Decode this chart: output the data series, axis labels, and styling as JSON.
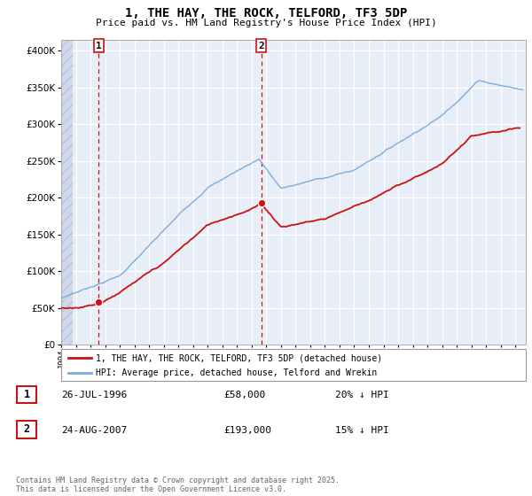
{
  "title": "1, THE HAY, THE ROCK, TELFORD, TF3 5DP",
  "subtitle": "Price paid vs. HM Land Registry's House Price Index (HPI)",
  "ytick_vals": [
    0,
    50000,
    100000,
    150000,
    200000,
    250000,
    300000,
    350000,
    400000
  ],
  "ytick_labels": [
    "£0",
    "£50K",
    "£100K",
    "£150K",
    "£200K",
    "£250K",
    "£300K",
    "£350K",
    "£400K"
  ],
  "ylim": [
    0,
    415000
  ],
  "xlim_start": 1994.0,
  "xlim_end": 2025.7,
  "hpi_color": "#7aadde",
  "price_color": "#cc1111",
  "marker1_year": 1996.57,
  "marker1_price": 58000,
  "marker2_year": 2007.65,
  "marker2_price": 193000,
  "annotation1_label": "1",
  "annotation2_label": "2",
  "legend_line1": "1, THE HAY, THE ROCK, TELFORD, TF3 5DP (detached house)",
  "legend_line2": "HPI: Average price, detached house, Telford and Wrekin",
  "note1_label": "1",
  "note1_date": "26-JUL-1996",
  "note1_price": "£58,000",
  "note1_hpi": "20% ↓ HPI",
  "note2_label": "2",
  "note2_date": "24-AUG-2007",
  "note2_price": "£193,000",
  "note2_hpi": "15% ↓ HPI",
  "footnote": "Contains HM Land Registry data © Crown copyright and database right 2025.\nThis data is licensed under the Open Government Licence v3.0.",
  "background_color": "#e8eef8",
  "grid_color": "#ffffff",
  "dashed_vline_color": "#cc1111",
  "hatch_xlim": 1994.8,
  "hatch_color": "#d0d9eb"
}
